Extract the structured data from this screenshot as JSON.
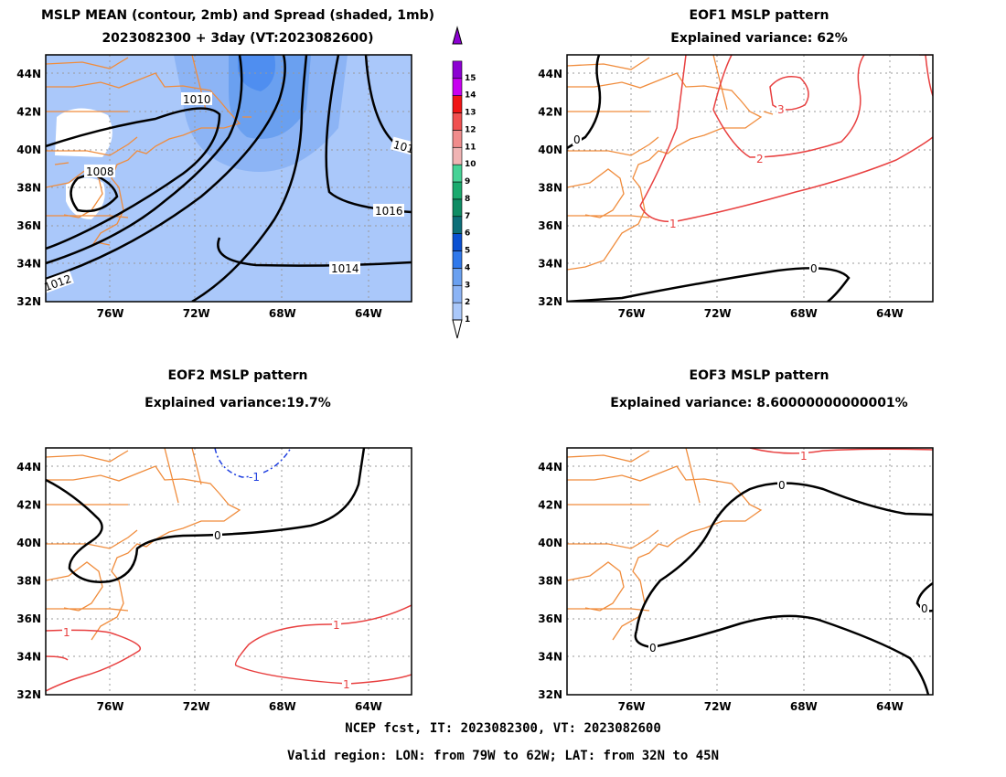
{
  "panel1": {
    "title_line1": "MSLP MEAN (contour, 2mb) and Spread (shaded, 1mb)",
    "title_line2": "2023082300 + 3day (VT:2023082600)",
    "contour_labels": [
      "1010",
      "1008",
      "1016",
      "1014",
      "1012",
      "101"
    ],
    "colorbar_labels": [
      "1",
      "2",
      "3",
      "4",
      "5",
      "6",
      "7",
      "8",
      "9",
      "10",
      "11",
      "12",
      "13",
      "14",
      "15"
    ],
    "colorbar_colors": [
      "#ffffff",
      "#aac8fa",
      "#8cb4f5",
      "#6aa0f0",
      "#2f78eb",
      "#0a50d2",
      "#0c6e78",
      "#0e8c64",
      "#1aaa6e",
      "#46d296",
      "#f0b4b4",
      "#f08c8c",
      "#f05050",
      "#f01414",
      "#c800f0",
      "#8c00d2"
    ]
  },
  "panel2": {
    "title_line1": "EOF1 MSLP pattern",
    "title_line2": "Explained variance: 62%",
    "contour_labels": [
      "0",
      "3",
      "2",
      "1",
      "0"
    ]
  },
  "panel3": {
    "title_line1": "EOF2 MSLP pattern",
    "title_line2": "Explained variance:19.7%",
    "contour_labels": [
      "-1",
      "0",
      "1",
      "1",
      "1"
    ]
  },
  "panel4": {
    "title_line1": "EOF3 MSLP pattern",
    "title_line2": "Explained variance: 8.60000000000001%",
    "contour_labels": [
      "1",
      "0",
      "0",
      "0"
    ]
  },
  "footer": {
    "line1": "NCEP fcst, IT: 2023082300, VT: 2023082600",
    "line2": "Valid region: LON: from 79W to 62W; LAT: from 32N to 45N"
  },
  "chart_data": {
    "type": "contour-map",
    "x_ticks": [
      "76W",
      "72W",
      "68W",
      "64W"
    ],
    "y_ticks": [
      "32N",
      "34N",
      "36N",
      "38N",
      "40N",
      "42N",
      "44N"
    ],
    "lon_range": [
      -79,
      -62
    ],
    "lat_range": [
      32,
      45
    ],
    "grid": true,
    "colors": {
      "coast": "#f08c3c",
      "contour_black": "#000000",
      "contour_pos": "#e84040",
      "contour_neg": "#2040e0"
    }
  }
}
